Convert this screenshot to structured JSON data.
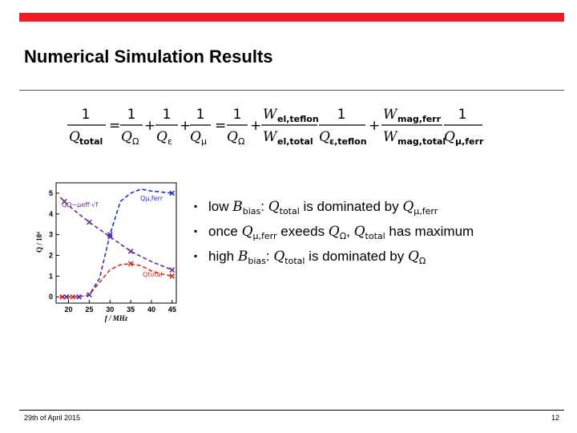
{
  "slide": {
    "title": "Numerical Simulation Results",
    "accent_color": "#ee1c24",
    "footer_date": "29th of April 2015",
    "page_number": "12"
  },
  "equation": {
    "num_one": "1",
    "lhs_q": "Q",
    "lhs_sub": "total",
    "t1_q": "Q",
    "t1_sub": "Ω",
    "t2_q": "Q",
    "t2_sub": "ε",
    "t3_q": "Q",
    "t3_sub": "μ",
    "t4_q": "Q",
    "t4_sub": "Ω",
    "w1_num": "W",
    "w1_num_sub": "el,teflon",
    "w1_den": "W",
    "w1_den_sub": "el,total",
    "t5_q": "Q",
    "t5_sub": "ε,teflon",
    "w2_num": "W",
    "w2_num_sub": "mag,ferr",
    "w2_den": "W",
    "w2_den_sub": "mag,total",
    "t6_q": "Q",
    "t6_sub": "μ,ferr",
    "equals": "=",
    "plus": "+"
  },
  "bullets": [
    {
      "t0": "low ",
      "m1": "B",
      "m1_sub": "bias",
      "t1": ": ",
      "m2": "Q",
      "m2_sub": "total",
      "t2": " is dominated by ",
      "m3": "Q",
      "m3_sub": "μ,ferr",
      "t3": ""
    },
    {
      "t0": "once ",
      "m1": "Q",
      "m1_sub": "μ,ferr",
      "t1": " exeeds ",
      "m2": "Q",
      "m2_sub": "Ω",
      "t2": ", ",
      "m3": "Q",
      "m3_sub": "total",
      "t3": " has maximum"
    },
    {
      "t0": "high ",
      "m1": "B",
      "m1_sub": "bias",
      "t1": ": ",
      "m2": "Q",
      "m2_sub": "total",
      "t2": " is dominated by ",
      "m3": "Q",
      "m3_sub": "Ω",
      "t3": ""
    }
  ],
  "chart_data": {
    "type": "line",
    "xlabel": "f / MHz",
    "ylabel": "Q / 10⁴",
    "x_ticks": [
      20,
      25,
      30,
      35,
      40,
      45
    ],
    "y_ticks": [
      0,
      1,
      2,
      3,
      4,
      5
    ],
    "xlim": [
      17,
      46
    ],
    "ylim": [
      -0.3,
      5.5
    ],
    "series": [
      {
        "name": "Qμ,ferr",
        "color": "#1f2fcf",
        "points": [
          [
            18,
            0
          ],
          [
            20,
            0
          ],
          [
            22.5,
            0
          ],
          [
            25,
            0.1
          ],
          [
            27.5,
            0.9
          ],
          [
            30,
            3.0
          ],
          [
            32.5,
            4.6
          ],
          [
            35,
            5.0
          ],
          [
            37.5,
            5.2
          ],
          [
            40,
            5.1
          ],
          [
            42.5,
            5.05
          ],
          [
            45,
            5.0
          ]
        ],
        "markers": [
          [
            19.5,
            0
          ],
          [
            22.5,
            0
          ],
          [
            25,
            0.1
          ],
          [
            30,
            3.0
          ],
          [
            45,
            5.0
          ]
        ]
      },
      {
        "name": "QΩ∝μeff·√f",
        "color": "#6a2c8e",
        "points": [
          [
            18,
            4.8
          ],
          [
            20,
            4.4
          ],
          [
            22.5,
            4.0
          ],
          [
            25,
            3.6
          ],
          [
            27.5,
            3.25
          ],
          [
            30,
            2.9
          ],
          [
            32.5,
            2.55
          ],
          [
            35,
            2.2
          ],
          [
            37.5,
            1.95
          ],
          [
            40,
            1.7
          ],
          [
            42.5,
            1.5
          ],
          [
            45,
            1.3
          ]
        ],
        "markers": [
          [
            19,
            4.6
          ],
          [
            25,
            3.6
          ],
          [
            30,
            2.9
          ],
          [
            35,
            2.2
          ],
          [
            45,
            1.3
          ]
        ]
      },
      {
        "name": "Qtotal",
        "color": "#d42a1e",
        "points": [
          [
            18,
            0
          ],
          [
            20,
            0
          ],
          [
            22.5,
            0
          ],
          [
            25,
            0.1
          ],
          [
            27.5,
            0.7
          ],
          [
            30,
            1.3
          ],
          [
            32.5,
            1.55
          ],
          [
            35,
            1.6
          ],
          [
            37.5,
            1.5
          ],
          [
            40,
            1.25
          ],
          [
            42.5,
            1.1
          ],
          [
            45,
            1.0
          ]
        ],
        "markers": [
          [
            18.5,
            0
          ],
          [
            21,
            0
          ],
          [
            35,
            1.6
          ],
          [
            45,
            1.0
          ]
        ]
      }
    ],
    "labels": [
      {
        "text": "QΩ∼μeff·√f",
        "color": "#6a2c8e"
      },
      {
        "text": "Qμ,ferr",
        "color": "#1f2fcf"
      },
      {
        "text": "Qtotal",
        "color": "#d42a1e"
      }
    ],
    "grid": false,
    "legend": "inline labels"
  }
}
